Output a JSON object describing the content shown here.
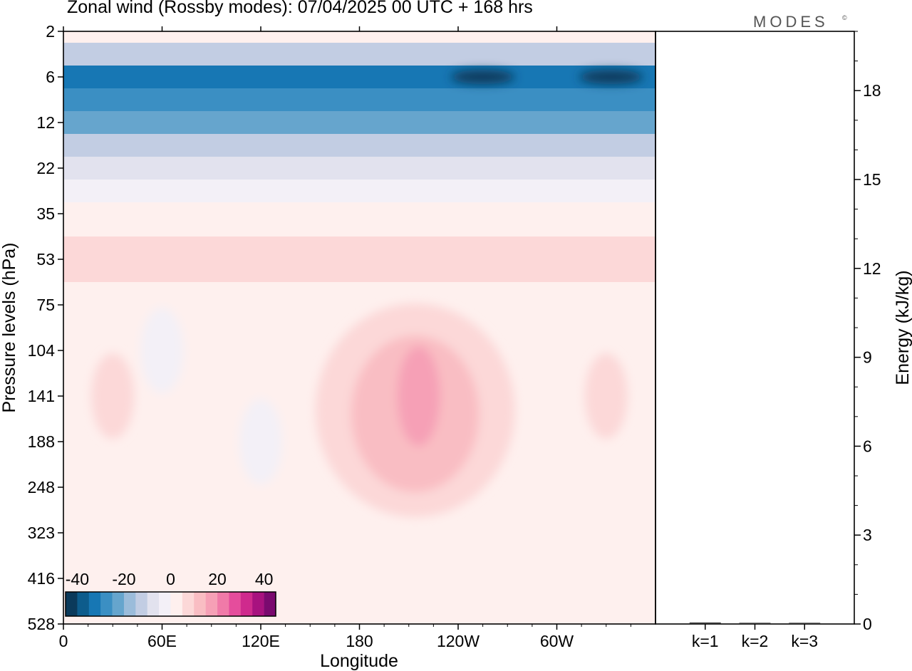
{
  "header": {
    "title": "Zonal wind (Rossby modes):  07/04/2025  00 UTC  + 168 hrs",
    "brand": "MODES",
    "brand_mark": "©"
  },
  "chart_data": [
    {
      "type": "heatmap",
      "title": "Zonal wind (Rossby modes):  07/04/2025  00 UTC  + 168 hrs",
      "xlabel": "Longitude",
      "ylabel": "Pressure levels (hPa)",
      "x_ticks": [
        "0",
        "60E",
        "120E",
        "180",
        "120W",
        "60W"
      ],
      "x_tick_values": [
        0,
        60,
        120,
        180,
        240,
        300
      ],
      "xlim": [
        0,
        360
      ],
      "y_ticks": [
        "2",
        "6",
        "12",
        "22",
        "35",
        "53",
        "75",
        "104",
        "141",
        "188",
        "248",
        "323",
        "416",
        "528"
      ],
      "y_scale": "level index (top = 2 hPa, bottom = 528 hPa)",
      "colorbar": {
        "tick_labels": [
          "-40",
          "-20",
          "0",
          "20",
          "40"
        ],
        "tick_values": [
          -40,
          -20,
          0,
          20,
          40
        ],
        "range": [
          -45,
          45
        ],
        "levels": [
          -45,
          -40,
          -35,
          -30,
          -25,
          -20,
          -15,
          -10,
          -5,
          0,
          5,
          10,
          15,
          20,
          25,
          30,
          35,
          40,
          45
        ],
        "colors": [
          "#0b3a5b",
          "#0d5c8c",
          "#1777b4",
          "#3b8fc3",
          "#66a5cd",
          "#9bbcda",
          "#c2cde3",
          "#e2e2ee",
          "#f3f0f7",
          "#fef0ee",
          "#fcd8d8",
          "#f9bdc3",
          "#f6a0b6",
          "#f07aa8",
          "#e54d9c",
          "#cf2a8d",
          "#a8127f",
          "#7a0a6f"
        ]
      },
      "bands": [
        {
          "level": "2",
          "value": 2
        },
        {
          "level": "4",
          "value": -12
        },
        {
          "level": "6",
          "value": -35
        },
        {
          "level": "9",
          "value": -30
        },
        {
          "level": "12",
          "value": -22
        },
        {
          "level": "16",
          "value": -14
        },
        {
          "level": "22",
          "value": -8
        },
        {
          "level": "28",
          "value": -3
        },
        {
          "level": "35",
          "value": 2
        },
        {
          "level": "53",
          "value": 6
        },
        {
          "level": "75",
          "value": 2
        },
        {
          "level": "104",
          "value": 1
        },
        {
          "level": "141",
          "value": 1
        },
        {
          "level": "188",
          "value": 1
        },
        {
          "level": "248",
          "value": 0
        },
        {
          "level": "323",
          "value": 0
        },
        {
          "level": "416",
          "value": 0
        },
        {
          "level": "528",
          "value": 0
        }
      ],
      "features": [
        {
          "name": "wind maximum",
          "lon": 216,
          "level": "141",
          "value": 18
        },
        {
          "name": "jet core",
          "lon": 255,
          "level": "6",
          "value": -42
        },
        {
          "name": "jet core",
          "lon": 333,
          "level": "6",
          "value": -42
        },
        {
          "name": "easterly pocket",
          "lon": 60,
          "level": "104",
          "value": -3
        },
        {
          "name": "easterly pocket",
          "lon": 120,
          "level": "188",
          "value": -3
        },
        {
          "name": "westerly pocket",
          "lon": 30,
          "level": "141",
          "value": 6
        },
        {
          "name": "westerly pocket",
          "lon": 330,
          "level": "141",
          "value": 6
        }
      ]
    },
    {
      "type": "bar",
      "categories": [
        "k=1",
        "k=2",
        "k=3"
      ],
      "values": [
        0.05,
        0.04,
        0.04
      ],
      "ylabel": "Energy (kJ/kg)",
      "ylim": [
        0,
        20
      ],
      "y_ticks": [
        "0",
        "3",
        "6",
        "9",
        "12",
        "15",
        "18"
      ],
      "y_tick_values": [
        0,
        3,
        6,
        9,
        12,
        15,
        18
      ]
    }
  ]
}
